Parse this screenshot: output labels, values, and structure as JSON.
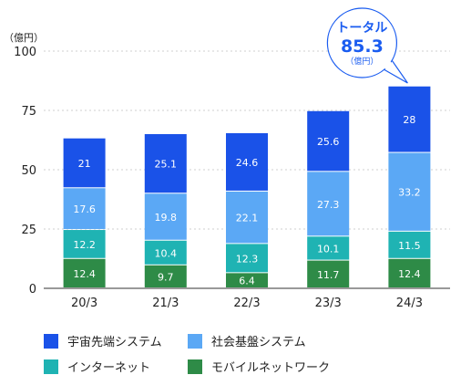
{
  "chart_data": {
    "type": "bar",
    "stacked": true,
    "unit_label": "（億円）",
    "categories": [
      "20/3",
      "21/3",
      "22/3",
      "23/3",
      "24/3"
    ],
    "series": [
      {
        "name": "モバイルネットワーク",
        "color": "#2e8b47",
        "values": [
          12.4,
          9.7,
          6.4,
          11.7,
          12.4
        ],
        "labels": [
          "12.4",
          "9.7",
          "6.4",
          "11.7",
          "12.4"
        ]
      },
      {
        "name": "インターネット",
        "color": "#1fb3b3",
        "values": [
          12.2,
          10.4,
          12.3,
          10.1,
          11.5
        ],
        "labels": [
          "12.2",
          "10.4",
          "12.3",
          "10.1",
          "11.5"
        ]
      },
      {
        "name": "社会基盤システム",
        "color": "#5ba8f5",
        "values": [
          17.6,
          19.8,
          22.1,
          27.3,
          33.2
        ],
        "labels": [
          "17.6",
          "19.8",
          "22.1",
          "27.3",
          "33.2"
        ]
      },
      {
        "name": "宇宙先端システム",
        "color": "#1a52e8",
        "values": [
          21,
          25.1,
          24.6,
          25.6,
          28
        ],
        "labels": [
          "21",
          "25.1",
          "24.6",
          "25.6",
          "28"
        ]
      }
    ],
    "ylim": [
      0,
      100
    ],
    "yticks": [
      0,
      25,
      50,
      75,
      100
    ],
    "grid": true,
    "legend_order": [
      "宇宙先端システム",
      "社会基盤システム",
      "インターネット",
      "モバイルネットワーク"
    ],
    "callout": {
      "title": "トータル",
      "value": "85.3",
      "unit": "（億円）",
      "category": "24/3"
    }
  }
}
